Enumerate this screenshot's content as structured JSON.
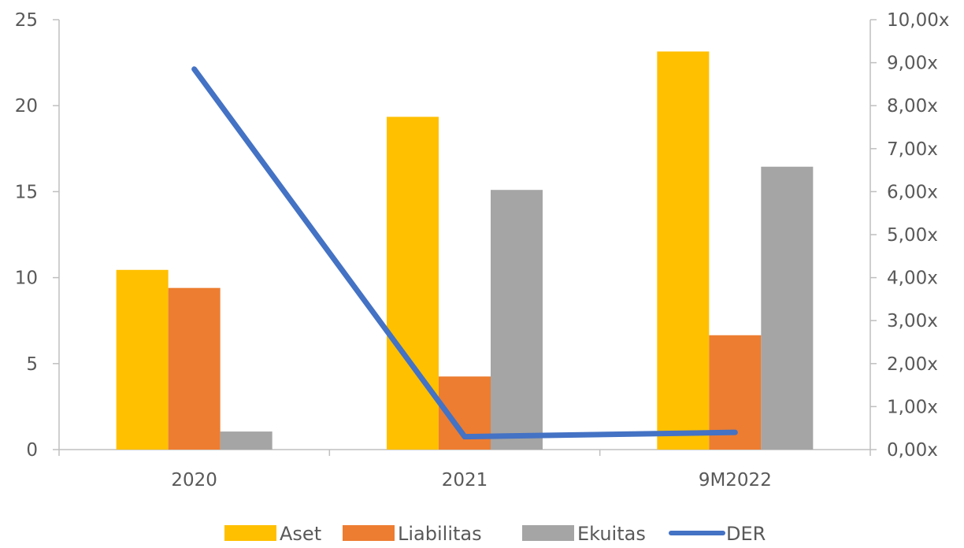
{
  "chart_data": {
    "type": "bar",
    "categories": [
      "2020",
      "2021",
      "9M2022"
    ],
    "series": [
      {
        "name": "Aset",
        "type": "bar",
        "axis": "left",
        "color": "#FFC000",
        "values": [
          10.45,
          19.35,
          23.15
        ]
      },
      {
        "name": "Liabilitas",
        "type": "bar",
        "axis": "left",
        "color": "#ED7D31",
        "values": [
          9.4,
          4.25,
          6.65
        ]
      },
      {
        "name": "Ekuitas",
        "type": "bar",
        "axis": "left",
        "color": "#A5A5A5",
        "values": [
          1.05,
          15.1,
          16.45
        ]
      },
      {
        "name": "DER",
        "type": "line",
        "axis": "right",
        "color": "#4472C4",
        "values": [
          8.85,
          0.3,
          0.4
        ]
      }
    ],
    "y_left": {
      "lim": [
        0,
        25
      ],
      "ticks": [
        "0",
        "5",
        "10",
        "15",
        "20",
        "25"
      ],
      "tick_values": [
        0,
        5,
        10,
        15,
        20,
        25
      ]
    },
    "y_right": {
      "lim": [
        0,
        10
      ],
      "ticks": [
        "0,00x",
        "1,00x",
        "2,00x",
        "3,00x",
        "4,00x",
        "5,00x",
        "6,00x",
        "7,00x",
        "8,00x",
        "9,00x",
        "10,00x"
      ],
      "tick_values": [
        0,
        1,
        2,
        3,
        4,
        5,
        6,
        7,
        8,
        9,
        10
      ]
    },
    "grid": false,
    "legend_position": "bottom"
  }
}
